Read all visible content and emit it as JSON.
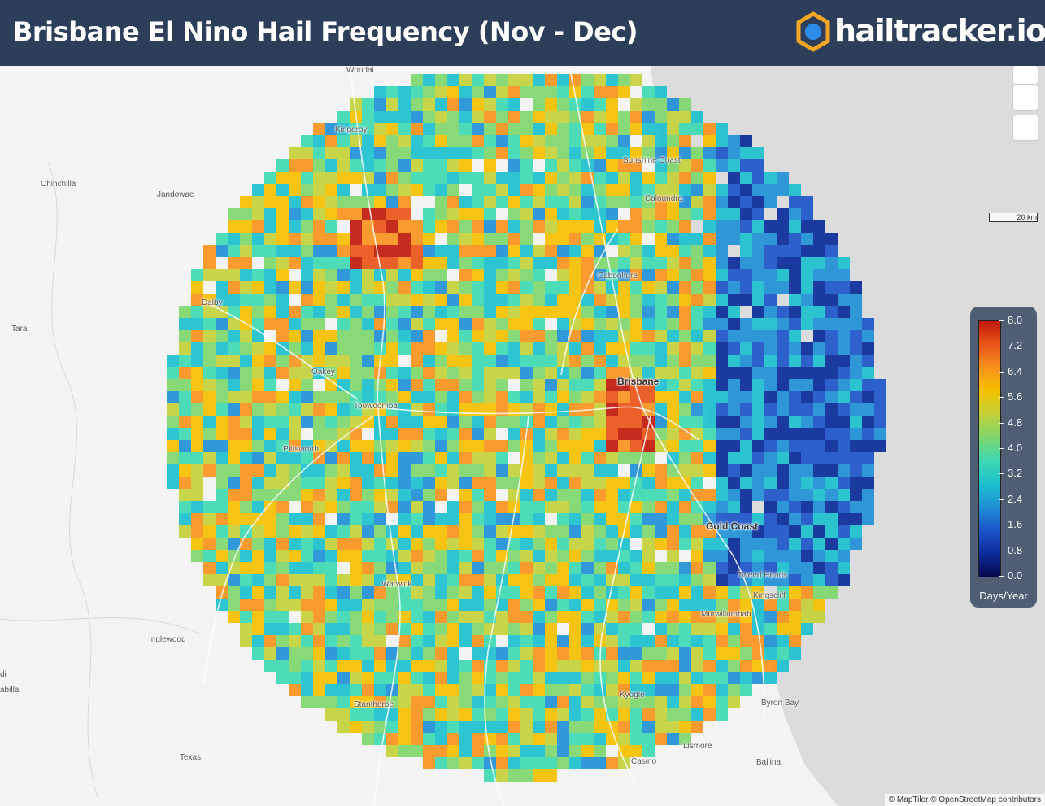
{
  "header": {
    "title": "Brisbane El Nino Hail Frequency (Nov - Dec)",
    "logo_text": "hailtracker.io"
  },
  "map": {
    "places": [
      {
        "name": "Wondai",
        "major": false
      },
      {
        "name": "Kingaroy",
        "major": false
      },
      {
        "name": "Chinchilla",
        "major": false
      },
      {
        "name": "Jandowae",
        "major": false
      },
      {
        "name": "Sunshine Coast",
        "major": false
      },
      {
        "name": "Caloundra",
        "major": false
      },
      {
        "name": "Caboolture",
        "major": false
      },
      {
        "name": "Dalby",
        "major": false
      },
      {
        "name": "Tara",
        "major": false
      },
      {
        "name": "Oakey",
        "major": false
      },
      {
        "name": "Brisbane",
        "major": true
      },
      {
        "name": "Toowoomba",
        "major": false
      },
      {
        "name": "Pittsworth",
        "major": false
      },
      {
        "name": "Gold Coast",
        "major": true
      },
      {
        "name": "Tweed Heads",
        "major": false
      },
      {
        "name": "Kingscliff",
        "major": false
      },
      {
        "name": "Warwick",
        "major": false
      },
      {
        "name": "Murwillumbah",
        "major": false
      },
      {
        "name": "Inglewood",
        "major": false
      },
      {
        "name": "di",
        "major": false
      },
      {
        "name": "abilla",
        "major": false
      },
      {
        "name": "Stanthorpe",
        "major": false
      },
      {
        "name": "Kyogle",
        "major": false
      },
      {
        "name": "Byron Bay",
        "major": false
      },
      {
        "name": "Texas",
        "major": false
      },
      {
        "name": "Lismore",
        "major": false
      },
      {
        "name": "Casino",
        "major": false
      },
      {
        "name": "Ballina",
        "major": false
      }
    ],
    "scale_label": "20 km",
    "attribution": "© MapTiler © OpenStreetMap contributors"
  },
  "legend": {
    "unit": "Days/Year",
    "min": 0,
    "max": 8,
    "ticks": [
      "8.0",
      "7.2",
      "6.4",
      "5.6",
      "4.8",
      "4.0",
      "3.2",
      "2.4",
      "1.6",
      "0.8",
      "0.0"
    ],
    "colors": [
      "#08084f",
      "#0a2b9a",
      "#1c55c9",
      "#1f8fd6",
      "#1cc0cf",
      "#3ed9b2",
      "#7ed66b",
      "#c3d13a",
      "#f5c000",
      "#f9931c",
      "#ea5418",
      "#c0190b"
    ]
  }
}
